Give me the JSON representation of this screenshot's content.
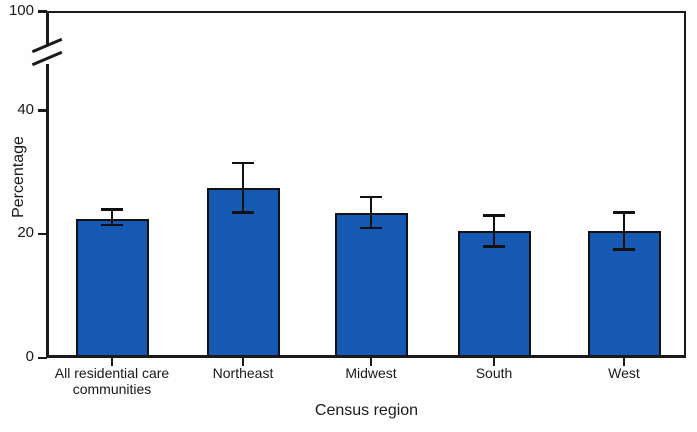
{
  "chart_data": {
    "type": "bar",
    "title": "",
    "xlabel": "Census region",
    "ylabel": "Percentage",
    "categories": [
      "All residential care\ncommunities",
      "Northeast",
      "Midwest",
      "South",
      "West"
    ],
    "values": [
      22,
      27,
      23,
      20,
      20
    ],
    "error_low": [
      21,
      23,
      20.5,
      17.5,
      17
    ],
    "error_high": [
      23.5,
      31,
      25.5,
      22.5,
      23
    ],
    "error_bars": true,
    "y_ticks": [
      0,
      20,
      40
    ],
    "y_top_tick_label": "100",
    "axis_break": true,
    "ylim": [
      0,
      100
    ],
    "grid": "off",
    "legend": "none",
    "bar_color": "#1659b2",
    "bar_border_color": "#111111",
    "axis_color": "#1a1a1a",
    "background_color": "#fffefe"
  }
}
